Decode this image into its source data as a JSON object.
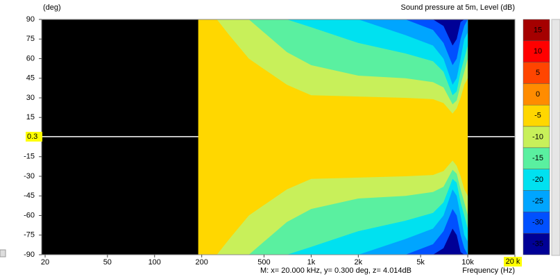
{
  "chart_data": {
    "type": "contour",
    "title": "Sound pressure at 5m, Level  (dB)",
    "y_label": "(deg)",
    "x_label": "Frequency  (Hz)",
    "status": "M:  x= 20.000 kHz,  y= 0.300 deg, z= 4.014dB",
    "log_x": true,
    "xlim": [
      19,
      20000
    ],
    "xticks": [
      20,
      50,
      100,
      200,
      500,
      {
        "value": 1000,
        "label": "1k"
      },
      {
        "value": 2000,
        "label": "2k"
      },
      {
        "value": 5000,
        "label": "5k"
      },
      {
        "value": 10000,
        "label": "10k"
      },
      {
        "value": 20000,
        "label": "20k"
      }
    ],
    "ylim": [
      -90,
      90
    ],
    "yticks": [
      90,
      75,
      60,
      45,
      30,
      15,
      0,
      -15,
      -30,
      -45,
      -60,
      -75,
      -90
    ],
    "background": "#000000",
    "base_color": "#ffd700",
    "x": [
      190,
      250,
      300,
      400,
      500,
      700,
      1000,
      2000,
      4000,
      6000,
      7000,
      8000,
      8500,
      9000,
      9500,
      10000
    ],
    "contours": [
      {
        "color": "#c8f05a",
        "upper": [
          90,
          90,
          78,
          60,
          52,
          40,
          32,
          31,
          30,
          29,
          26,
          18,
          22,
          30,
          40,
          45
        ],
        "lower": [
          -90,
          -90,
          -78,
          -60,
          -52,
          -40,
          -32,
          -31,
          -30,
          -29,
          -26,
          -18,
          -22,
          -30,
          -40,
          -45
        ]
      },
      {
        "color": "#5af0a0",
        "upper": [
          90,
          90,
          90,
          90,
          80,
          65,
          55,
          47,
          45,
          42,
          38,
          25,
          28,
          40,
          50,
          60
        ],
        "lower": [
          -90,
          -90,
          -90,
          -90,
          -80,
          -65,
          -55,
          -47,
          -45,
          -42,
          -38,
          -25,
          -28,
          -40,
          -50,
          -60
        ]
      },
      {
        "color": "#00e1f0",
        "upper": [
          90,
          90,
          90,
          90,
          90,
          90,
          84,
          72,
          64,
          58,
          50,
          32,
          35,
          50,
          60,
          70
        ],
        "lower": [
          -90,
          -90,
          -90,
          -90,
          -90,
          -90,
          -84,
          -72,
          -64,
          -58,
          -50,
          -32,
          -35,
          -50,
          -60,
          -70
        ]
      },
      {
        "color": "#00a5ff",
        "upper": [
          90,
          90,
          90,
          90,
          90,
          90,
          90,
          90,
          78,
          70,
          60,
          40,
          45,
          60,
          75,
          80
        ],
        "lower": [
          -90,
          -90,
          -90,
          -90,
          -90,
          -90,
          -90,
          -90,
          -78,
          -70,
          -60,
          -40,
          -45,
          -60,
          -75,
          -80
        ]
      },
      {
        "color": "#0050ff",
        "upper": [
          90,
          90,
          90,
          90,
          90,
          90,
          90,
          90,
          90,
          82,
          72,
          55,
          60,
          75,
          85,
          90
        ],
        "lower": [
          -90,
          -90,
          -90,
          -90,
          -90,
          -90,
          -90,
          -90,
          -90,
          -82,
          -72,
          -55,
          -60,
          -75,
          -85,
          -90
        ]
      },
      {
        "color": "#000096",
        "upper": [
          90,
          90,
          90,
          90,
          90,
          90,
          90,
          90,
          90,
          90,
          85,
          70,
          75,
          88,
          90,
          90
        ],
        "lower": [
          -90,
          -90,
          -90,
          -90,
          -90,
          -90,
          -90,
          -90,
          -90,
          -90,
          -85,
          -70,
          -75,
          -88,
          -90,
          -90
        ]
      }
    ],
    "colorbar": {
      "ticks": [
        15,
        10,
        5,
        0,
        -5,
        -10,
        -15,
        -20,
        -25,
        -30,
        -35
      ],
      "colors": [
        "#a50000",
        "#ff0000",
        "#ff4500",
        "#ff8c00",
        "#ffd700",
        "#c8f05a",
        "#5af0a0",
        "#00e1f0",
        "#00a5ff",
        "#0050ff",
        "#000096"
      ]
    },
    "cursor": {
      "x": {
        "value": 20000,
        "label": "20 k"
      },
      "y": 0.3,
      "color": "#ffff00"
    }
  }
}
